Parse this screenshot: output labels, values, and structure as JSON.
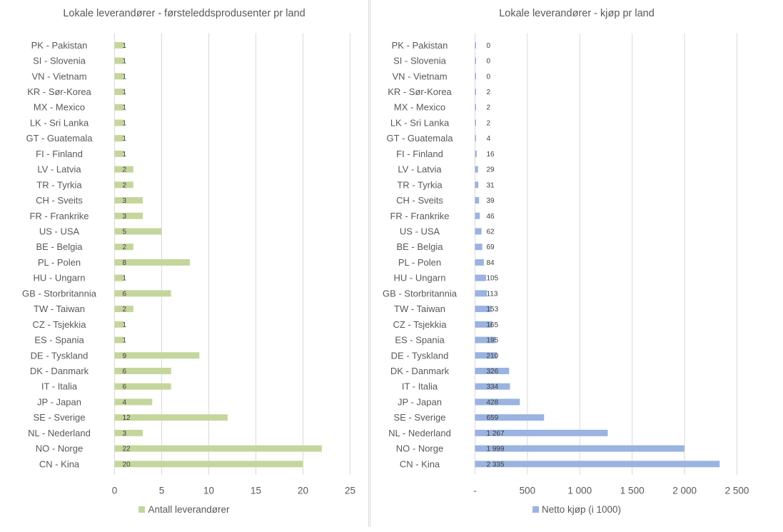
{
  "chart_data": [
    {
      "type": "bar",
      "orientation": "horizontal",
      "title": "Lokale leverandører - førsteleddsprodusenter pr land",
      "categories": [
        "PK - Pakistan",
        "SI - Slovenia",
        "VN - Vietnam",
        "KR - Sør-Korea",
        "MX - Mexico",
        "LK - Sri Lanka",
        "GT - Guatemala",
        "FI - Finland",
        "LV - Latvia",
        "TR - Tyrkia",
        "CH - Sveits",
        "FR - Frankrike",
        "US - USA",
        "BE - Belgia",
        "PL - Polen",
        "HU - Ungarn",
        "GB - Storbritannia",
        "TW - Taiwan",
        "CZ - Tsjekkia",
        "ES - Spania",
        "DE - Tyskland",
        "DK - Danmark",
        "IT - Italia",
        "JP - Japan",
        "SE - Sverige",
        "NL - Nederland",
        "NO - Norge",
        "CN - Kina"
      ],
      "series": [
        {
          "name": "Antall leverandører",
          "color": "#c5d69d",
          "values": [
            1,
            1,
            1,
            1,
            1,
            1,
            1,
            1,
            2,
            2,
            3,
            3,
            5,
            2,
            8,
            1,
            6,
            2,
            1,
            1,
            9,
            6,
            6,
            4,
            12,
            3,
            22,
            20
          ],
          "data_labels": [
            "1",
            "1",
            "1",
            "1",
            "1",
            "1",
            "1",
            "1",
            "2",
            "2",
            "3",
            "3",
            "5",
            "2",
            "8",
            "1",
            "6",
            "2",
            "1",
            "1",
            "9",
            "6",
            "6",
            "4",
            "12",
            "3",
            "22",
            "20"
          ]
        }
      ],
      "xlim": [
        0,
        25
      ],
      "xticks": [
        0,
        5,
        10,
        15,
        20,
        25
      ],
      "xtick_labels": [
        "0",
        "5",
        "10",
        "15",
        "20",
        "25"
      ],
      "xlabel": "",
      "ylabel": "",
      "grid": "vertical",
      "legend": "bottom"
    },
    {
      "type": "bar",
      "orientation": "horizontal",
      "title": "Lokale leverandører - kjøp pr land",
      "categories": [
        "PK - Pakistan",
        "SI - Slovenia",
        "VN - Vietnam",
        "KR - Sør-Korea",
        "MX - Mexico",
        "LK - Sri Lanka",
        "GT - Guatemala",
        "FI - Finland",
        "LV - Latvia",
        "TR - Tyrkia",
        "CH - Sveits",
        "FR - Frankrike",
        "US - USA",
        "BE - Belgia",
        "PL - Polen",
        "HU - Ungarn",
        "GB - Storbritannia",
        "TW - Taiwan",
        "CZ - Tsjekkia",
        "ES - Spania",
        "DE - Tyskland",
        "DK - Danmark",
        "IT - Italia",
        "JP - Japan",
        "SE - Sverige",
        "NL - Nederland",
        "NO - Norge",
        "CN - Kina"
      ],
      "series": [
        {
          "name": "Netto kjøp (i 1000)",
          "color": "#9ab3e0",
          "values": [
            0,
            0,
            0,
            2,
            2,
            2,
            4,
            16,
            29,
            31,
            39,
            46,
            62,
            69,
            84,
            105,
            113,
            153,
            165,
            195,
            210,
            326,
            334,
            428,
            659,
            1267,
            1999,
            2335
          ],
          "data_labels": [
            "0",
            "0",
            "0",
            "2",
            "2",
            "2",
            "4",
            "16",
            "29",
            "31",
            "39",
            "46",
            "62",
            "69",
            "84",
            "105",
            "113",
            "153",
            "165",
            "195",
            "210",
            "326",
            "334",
            "428",
            "659",
            "1 267",
            "1 999",
            "2 335"
          ]
        }
      ],
      "xlim": [
        0,
        2500
      ],
      "xticks": [
        0,
        500,
        1000,
        1500,
        2000,
        2500
      ],
      "xtick_labels": [
        "-",
        "500",
        "1 000",
        "1 500",
        "2 000",
        "2 500"
      ],
      "xlabel": "",
      "ylabel": "",
      "grid": "vertical",
      "legend": "bottom"
    }
  ]
}
